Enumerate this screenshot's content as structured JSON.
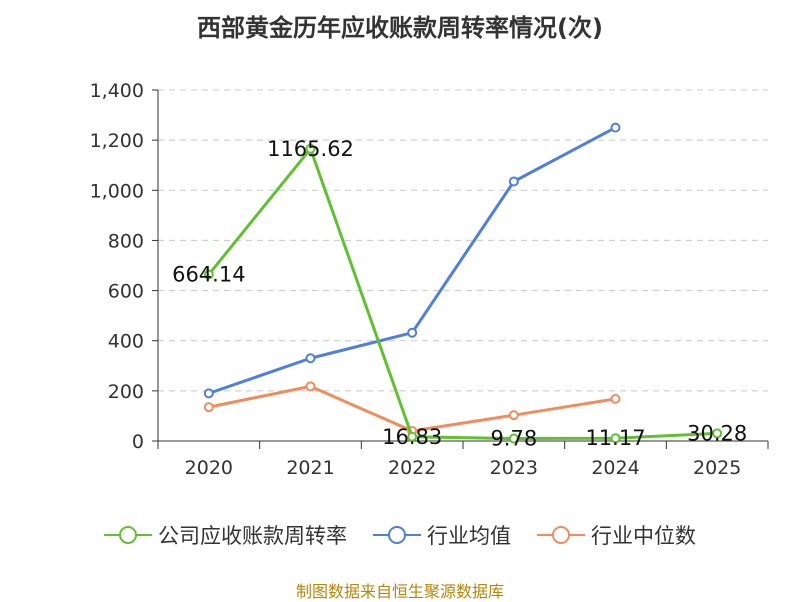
{
  "chart_data": {
    "type": "line",
    "title": "西部黄金历年应收账款周转率情况(次)",
    "categories": [
      "2020",
      "2021",
      "2022",
      "2023",
      "2024",
      "2025"
    ],
    "ylim": [
      0,
      1400
    ],
    "yticks": [
      0,
      200,
      400,
      600,
      800,
      1000,
      1200,
      1400
    ],
    "ytick_labels": [
      "0",
      "200",
      "400",
      "600",
      "800",
      "1,000",
      "1,200",
      "1,400"
    ],
    "grid": true,
    "legend_position": "bottom",
    "series": [
      {
        "name": "公司应收账款周转率",
        "color": "#5fc12f",
        "values": [
          664.14,
          1165.62,
          16.83,
          9.78,
          11.17,
          30.28
        ],
        "labels": [
          "664.14",
          "1165.62",
          "16.83",
          "9.78",
          "11.17",
          "30.28"
        ]
      },
      {
        "name": "行业均值",
        "color": "#4f7fdd",
        "values": [
          190,
          330,
          432,
          1035,
          1250,
          null
        ]
      },
      {
        "name": "行业中位数",
        "color": "#f28c5c",
        "values": [
          135,
          218,
          40,
          103,
          168,
          null
        ]
      }
    ]
  },
  "footer": "制图数据来自恒生聚源数据库"
}
